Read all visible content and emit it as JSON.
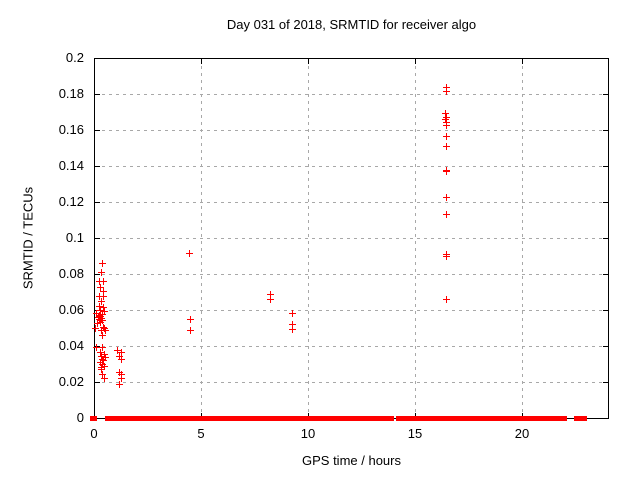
{
  "chart_data": {
    "type": "scatter",
    "title": "Day 031 of 2018, SRMTID for receiver algo",
    "xlabel": "GPS time / hours",
    "ylabel": "SRMTID / TECUs",
    "xlim": [
      0,
      24
    ],
    "ylim": [
      0,
      0.2
    ],
    "grid": true,
    "legend": "none",
    "marker": "plus",
    "marker_color": "#ee0000",
    "grid_color": "#a8a8a8",
    "border_color": "#000000",
    "xticks": [
      {
        "value": 0,
        "label": "0"
      },
      {
        "value": 5,
        "label": "5"
      },
      {
        "value": 10,
        "label": "10"
      },
      {
        "value": 15,
        "label": "15"
      },
      {
        "value": 20,
        "label": "20"
      }
    ],
    "yticks": [
      {
        "value": 0,
        "label": "0"
      },
      {
        "value": 0.02,
        "label": "0.02"
      },
      {
        "value": 0.04,
        "label": "0.04"
      },
      {
        "value": 0.06,
        "label": "0.06"
      },
      {
        "value": 0.08,
        "label": "0.08"
      },
      {
        "value": 0.1,
        "label": "0.1"
      },
      {
        "value": 0.12,
        "label": "0.12"
      },
      {
        "value": 0.14,
        "label": "0.14"
      },
      {
        "value": 0.16,
        "label": "0.16"
      },
      {
        "value": 0.18,
        "label": "0.18"
      },
      {
        "value": 0.2,
        "label": "0.2"
      }
    ],
    "points": [
      [
        0.36,
        0.0862
      ],
      [
        0.33,
        0.081
      ],
      [
        0.22,
        0.0763
      ],
      [
        0.43,
        0.0763
      ],
      [
        0.27,
        0.0729
      ],
      [
        0.43,
        0.0707
      ],
      [
        0.22,
        0.0676
      ],
      [
        0.4,
        0.0676
      ],
      [
        0.33,
        0.0652
      ],
      [
        0.25,
        0.0625
      ],
      [
        0.43,
        0.0618
      ],
      [
        0.3,
        0.06
      ],
      [
        0.45,
        0.0594
      ],
      [
        0.1,
        0.0585
      ],
      [
        0.36,
        0.058
      ],
      [
        0.22,
        0.0575
      ],
      [
        0.3,
        0.0568
      ],
      [
        0.17,
        0.056
      ],
      [
        0.33,
        0.0556
      ],
      [
        0.25,
        0.055
      ],
      [
        0.38,
        0.0542
      ],
      [
        0.28,
        0.0535
      ],
      [
        0.13,
        0.053
      ],
      [
        0.06,
        0.05
      ],
      [
        0.45,
        0.05
      ],
      [
        0.42,
        0.0506
      ],
      [
        0.31,
        0.0488
      ],
      [
        0.5,
        0.0489
      ],
      [
        0.36,
        0.0462
      ],
      [
        0.08,
        0.0395
      ],
      [
        0.39,
        0.0393
      ],
      [
        0.27,
        0.0365
      ],
      [
        0.45,
        0.0358
      ],
      [
        0.33,
        0.0345
      ],
      [
        0.5,
        0.0338
      ],
      [
        0.36,
        0.033
      ],
      [
        0.42,
        0.0322
      ],
      [
        0.29,
        0.031
      ],
      [
        0.38,
        0.0298
      ],
      [
        0.48,
        0.029
      ],
      [
        0.33,
        0.0283
      ],
      [
        0.31,
        0.0275
      ],
      [
        0.36,
        0.0244
      ],
      [
        0.45,
        0.022
      ],
      [
        1.07,
        0.0377
      ],
      [
        1.25,
        0.0364
      ],
      [
        1.19,
        0.0345
      ],
      [
        1.25,
        0.033
      ],
      [
        1.19,
        0.0253
      ],
      [
        1.25,
        0.0244
      ],
      [
        1.25,
        0.0225
      ],
      [
        1.19,
        0.0188
      ],
      [
        4.43,
        0.0914
      ],
      [
        4.47,
        0.0548
      ],
      [
        4.47,
        0.0489
      ],
      [
        8.2,
        0.0689
      ],
      [
        8.22,
        0.0659
      ],
      [
        9.25,
        0.0585
      ],
      [
        9.25,
        0.0522
      ],
      [
        9.25,
        0.0497
      ],
      [
        16.42,
        0.1837
      ],
      [
        16.42,
        0.1817
      ],
      [
        16.4,
        0.1694
      ],
      [
        16.44,
        0.1675
      ],
      [
        16.4,
        0.166
      ],
      [
        16.44,
        0.1644
      ],
      [
        16.42,
        0.163
      ],
      [
        16.44,
        0.1568
      ],
      [
        16.42,
        0.1509
      ],
      [
        16.45,
        0.1378
      ],
      [
        16.43,
        0.137
      ],
      [
        16.42,
        0.1226
      ],
      [
        16.42,
        0.1134
      ],
      [
        16.44,
        0.0912
      ],
      [
        16.42,
        0.0902
      ],
      [
        16.42,
        0.0659
      ]
    ],
    "baseline_value": 0,
    "baseline_segments": [
      [
        -0.08,
        0.06
      ],
      [
        0.6,
        1.26
      ],
      [
        1.3,
        1.55
      ],
      [
        1.67,
        1.86
      ],
      [
        2.0,
        2.45
      ],
      [
        2.5,
        2.84
      ],
      [
        2.93,
        3.3
      ],
      [
        3.35,
        3.63
      ],
      [
        3.77,
        4.4
      ],
      [
        4.45,
        4.85
      ],
      [
        4.94,
        5.03
      ],
      [
        5.17,
        5.8
      ],
      [
        5.85,
        6.2
      ],
      [
        6.3,
        7.0
      ],
      [
        7.05,
        7.5
      ],
      [
        7.7,
        8.6
      ],
      [
        8.7,
        9.8
      ],
      [
        9.85,
        10.5
      ],
      [
        10.58,
        11.4
      ],
      [
        11.45,
        12.28
      ],
      [
        12.47,
        13.26
      ],
      [
        13.4,
        13.59
      ],
      [
        13.72,
        13.91
      ],
      [
        14.19,
        14.38
      ],
      [
        14.57,
        14.81
      ],
      [
        14.99,
        16.16
      ],
      [
        16.3,
        16.67
      ],
      [
        16.81,
        17.0
      ],
      [
        17.14,
        18.54
      ],
      [
        18.68,
        18.87
      ],
      [
        19.01,
        20.27
      ],
      [
        20.41,
        21.2
      ],
      [
        21.34,
        21.53
      ],
      [
        21.67,
        22.0
      ],
      [
        22.51,
        22.93
      ]
    ]
  }
}
